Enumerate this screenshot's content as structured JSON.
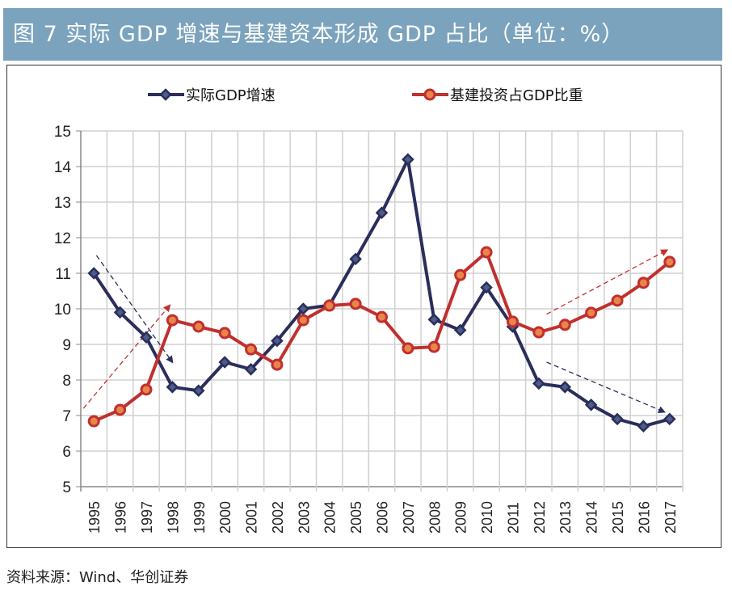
{
  "header": {
    "title": "图 7  实际 GDP 增速与基建资本形成 GDP 占比（单位：%）"
  },
  "source": "资料来源：Wind、华创证券",
  "chart_data": {
    "type": "line",
    "title": "图 7  实际 GDP 增速与基建资本形成 GDP 占比（单位：%）",
    "xlabel": "",
    "ylabel": "",
    "categories": [
      "1995",
      "1996",
      "1997",
      "1998",
      "1999",
      "2000",
      "2001",
      "2002",
      "2003",
      "2004",
      "2005",
      "2006",
      "2007",
      "2008",
      "2009",
      "2010",
      "2011",
      "2012",
      "2013",
      "2014",
      "2015",
      "2016",
      "2017"
    ],
    "ylim": [
      5,
      15
    ],
    "yticks": [
      "5",
      "6",
      "7",
      "8",
      "9",
      "10",
      "11",
      "12",
      "13",
      "14",
      "15"
    ],
    "grid": true,
    "legend": "top",
    "series": [
      {
        "name": "实际GDP增速",
        "color": "#2B2D5A",
        "marker": "diamond",
        "values": [
          11.0,
          9.9,
          9.2,
          7.8,
          7.7,
          8.5,
          8.3,
          9.1,
          10.0,
          10.1,
          11.4,
          12.7,
          14.2,
          9.7,
          9.4,
          10.6,
          9.5,
          7.9,
          7.8,
          7.3,
          6.9,
          6.7,
          6.9
        ]
      },
      {
        "name": "基建投资占GDP比重",
        "color": "#C0302E",
        "marker": "circle",
        "values": [
          6.84,
          7.16,
          7.73,
          9.68,
          9.5,
          9.32,
          8.86,
          8.43,
          9.68,
          10.09,
          10.14,
          9.77,
          8.89,
          8.93,
          10.95,
          11.59,
          9.64,
          9.34,
          9.55,
          9.89,
          10.23,
          10.73,
          11.32
        ]
      }
    ],
    "annotations": [
      {
        "kind": "dashed-arrow",
        "color": "#2B2D5A",
        "from": [
          1995.1,
          11.5
        ],
        "to": [
          1998,
          8.5
        ]
      },
      {
        "kind": "dashed-arrow",
        "color": "#C0302E",
        "from": [
          1994.6,
          7.2
        ],
        "to": [
          1997.9,
          10.1
        ]
      },
      {
        "kind": "dashed-arrow",
        "color": "#C0302E",
        "from": [
          2012.3,
          9.85
        ],
        "to": [
          2016.9,
          11.65
        ]
      },
      {
        "kind": "dashed-arrow",
        "color": "#2B2D5A",
        "from": [
          2012.3,
          8.5
        ],
        "to": [
          2016.8,
          7.1
        ]
      }
    ]
  },
  "colors": {
    "header_bg": "#7BA3BD",
    "grid": "#D0D0D0"
  }
}
